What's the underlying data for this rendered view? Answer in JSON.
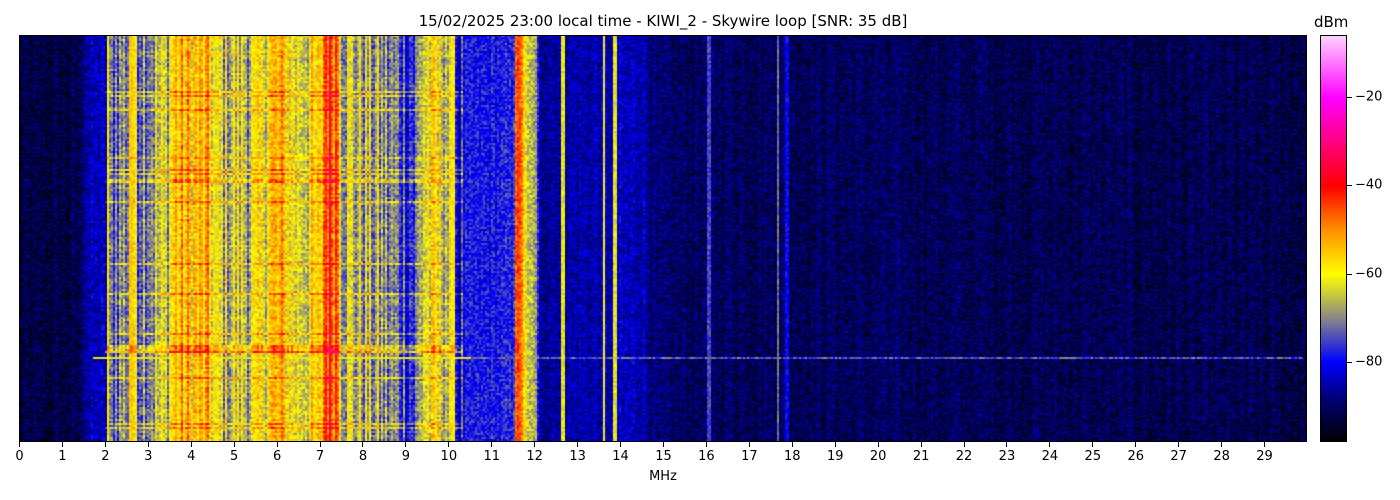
{
  "chart_data": {
    "type": "heatmap",
    "title": "15/02/2025 23:00 local time - KIWI_2 - Skywire loop [SNR: 35 dB]",
    "xlabel": "MHz",
    "ylabel": "",
    "xlim": [
      0,
      30
    ],
    "xticks": [
      "0",
      "1",
      "2",
      "3",
      "4",
      "5",
      "6",
      "7",
      "8",
      "9",
      "10",
      "11",
      "12",
      "13",
      "14",
      "15",
      "16",
      "17",
      "18",
      "19",
      "20",
      "21",
      "22",
      "23",
      "24",
      "25",
      "26",
      "27",
      "28",
      "29"
    ],
    "colorbar": {
      "label": "dBm",
      "range": [
        -98,
        -6
      ],
      "ticks": [
        "−20",
        "−40",
        "−60",
        "−80"
      ],
      "tick_values": [
        -20,
        -40,
        -60,
        -80
      ],
      "colormap": [
        {
          "value": -98,
          "color": "#000000"
        },
        {
          "value": -88,
          "color": "#00007a"
        },
        {
          "value": -80,
          "color": "#0000ff"
        },
        {
          "value": -70,
          "color": "#888888"
        },
        {
          "value": -60,
          "color": "#ffff00"
        },
        {
          "value": -50,
          "color": "#ff9000"
        },
        {
          "value": -40,
          "color": "#ff0000"
        },
        {
          "value": -20,
          "color": "#ff00ff"
        },
        {
          "value": -6,
          "color": "#ffd0ff"
        }
      ]
    },
    "spectral_profile_dbm": [
      {
        "mhz": 0,
        "level": -93
      },
      {
        "mhz": 1.4,
        "level": -92
      },
      {
        "mhz": 1.5,
        "level": -85
      },
      {
        "mhz": 2.0,
        "level": -84
      },
      {
        "mhz": 2.2,
        "level": -70
      },
      {
        "mhz": 3.4,
        "level": -66
      },
      {
        "mhz": 3.6,
        "level": -55
      },
      {
        "mhz": 4.4,
        "level": -56
      },
      {
        "mhz": 4.6,
        "level": -65
      },
      {
        "mhz": 5.6,
        "level": -64
      },
      {
        "mhz": 5.8,
        "level": -55
      },
      {
        "mhz": 6.2,
        "level": -56
      },
      {
        "mhz": 6.4,
        "level": -62
      },
      {
        "mhz": 7.0,
        "level": -60
      },
      {
        "mhz": 7.1,
        "level": -42
      },
      {
        "mhz": 7.4,
        "level": -44
      },
      {
        "mhz": 7.5,
        "level": -64
      },
      {
        "mhz": 8.5,
        "level": -70
      },
      {
        "mhz": 9.2,
        "level": -76
      },
      {
        "mhz": 9.4,
        "level": -62
      },
      {
        "mhz": 9.9,
        "level": -62
      },
      {
        "mhz": 10.2,
        "level": -80
      },
      {
        "mhz": 11.5,
        "level": -78
      },
      {
        "mhz": 11.55,
        "level": -45
      },
      {
        "mhz": 11.7,
        "level": -48
      },
      {
        "mhz": 11.8,
        "level": -66
      },
      {
        "mhz": 12.0,
        "level": -66
      },
      {
        "mhz": 12.1,
        "level": -86
      },
      {
        "mhz": 14.5,
        "level": -84
      },
      {
        "mhz": 14.8,
        "level": -90
      },
      {
        "mhz": 30,
        "level": -92
      }
    ],
    "narrow_signals": [
      {
        "mhz": 2.05,
        "level": -58
      },
      {
        "mhz": 2.6,
        "level": -55
      },
      {
        "mhz": 2.7,
        "level": -58
      },
      {
        "mhz": 10.1,
        "level": -58
      },
      {
        "mhz": 12.65,
        "level": -62
      },
      {
        "mhz": 13.6,
        "level": -60
      },
      {
        "mhz": 13.85,
        "level": -62
      },
      {
        "mhz": 16.05,
        "level": -75
      },
      {
        "mhz": 17.65,
        "level": -72
      },
      {
        "mhz": 17.85,
        "level": -80
      }
    ]
  }
}
